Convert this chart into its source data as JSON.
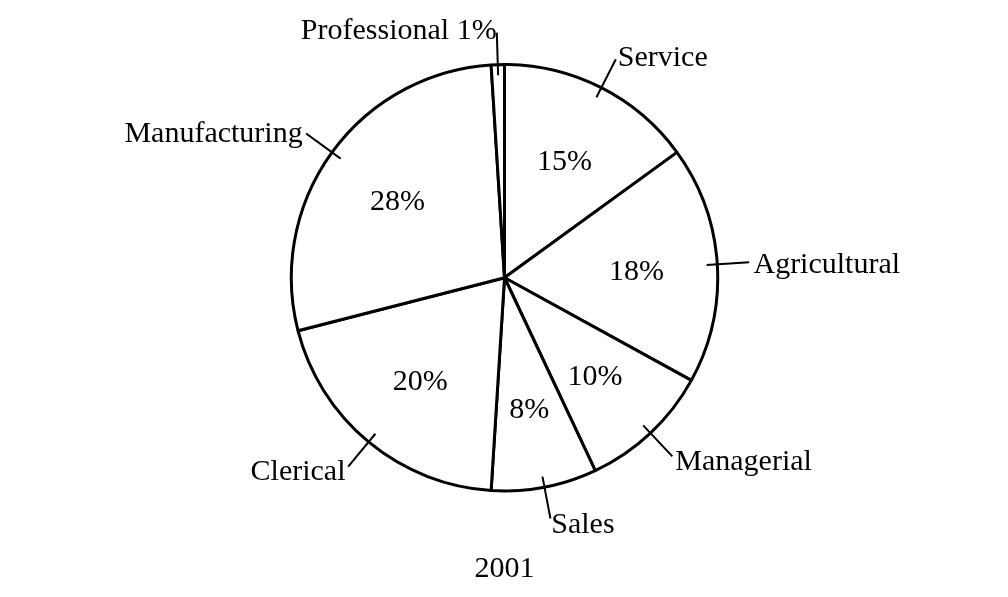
{
  "chart_data": {
    "type": "pie",
    "title": "2001",
    "categories": [
      "Service",
      "Agricultural",
      "Managerial",
      "Sales",
      "Clerical",
      "Manufacturing",
      "Professional"
    ],
    "values": [
      15,
      18,
      10,
      8,
      20,
      28,
      1
    ],
    "value_labels": [
      "15%",
      "18%",
      "10%",
      "8%",
      "20%",
      "28%",
      "1%"
    ],
    "colors": [
      "#ffffff",
      "#ffffff",
      "#ffffff",
      "#ffffff",
      "#ffffff",
      "#ffffff",
      "#ffffff"
    ]
  }
}
